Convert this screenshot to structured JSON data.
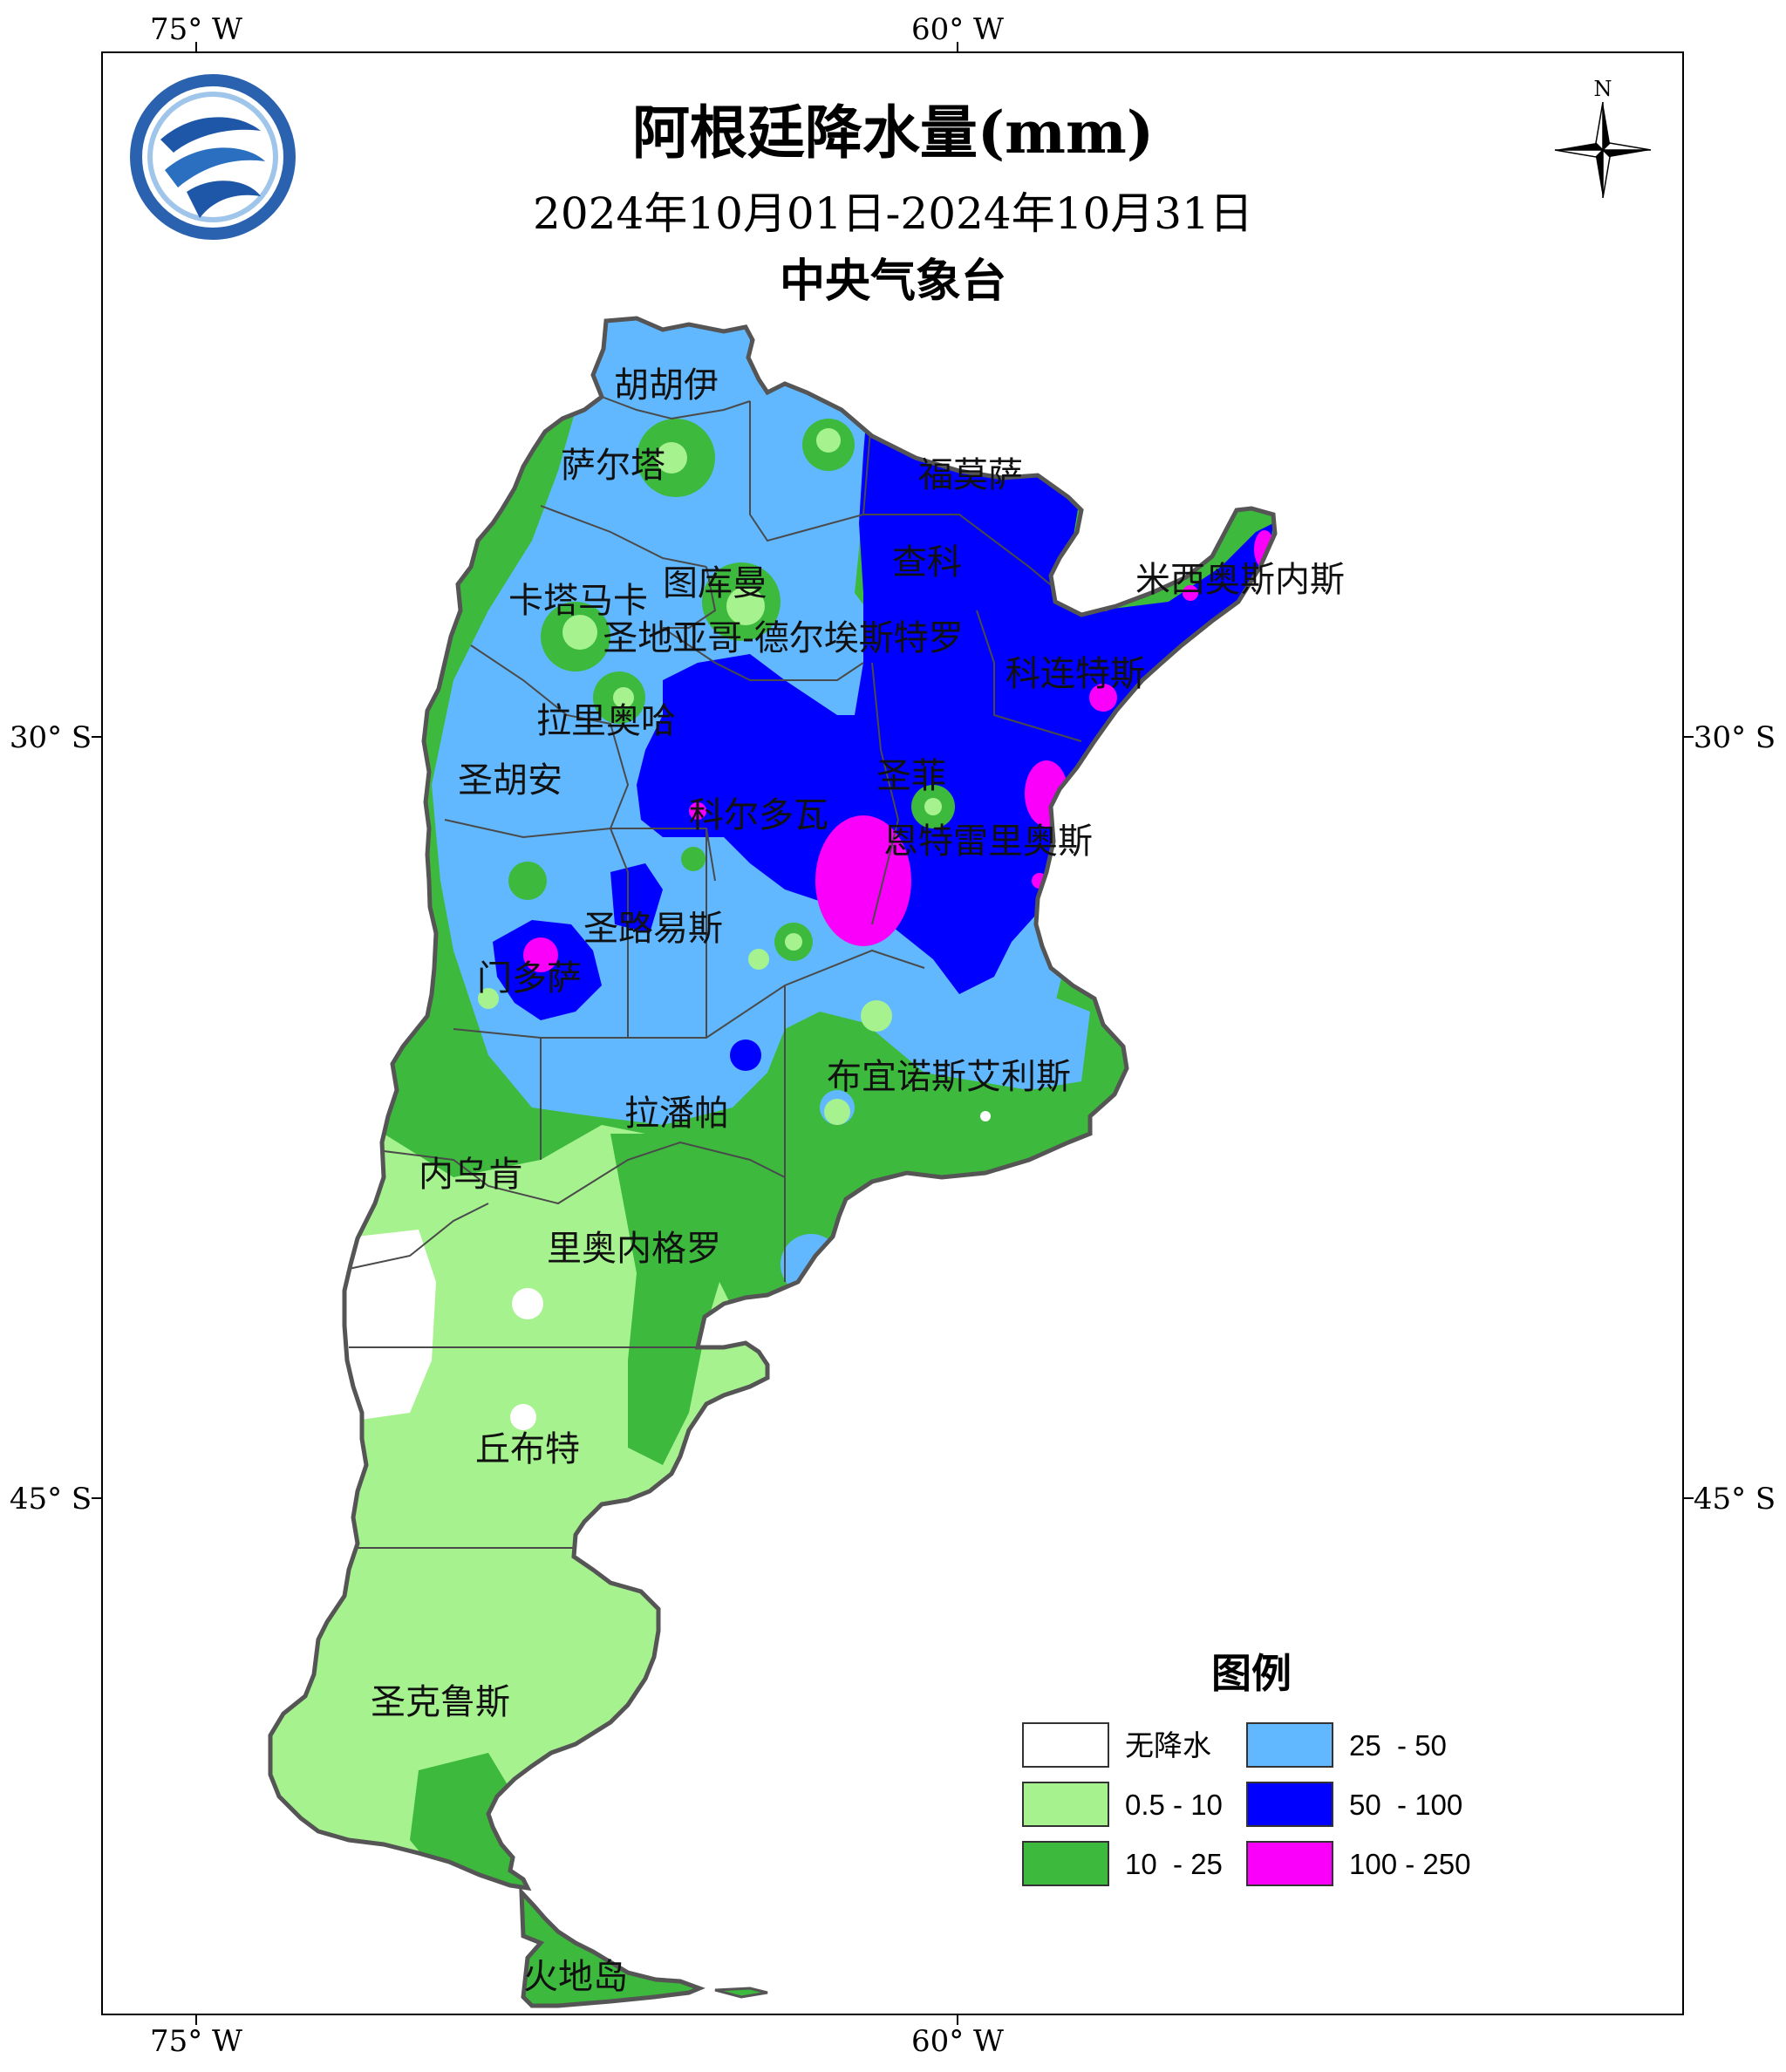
{
  "title": "阿根廷降水量(mm)",
  "date_range": "2024年10月01日-2024年10月31日",
  "agency": "中央气象台",
  "north_label": "N",
  "graticule": {
    "top_lon": [
      "75° W",
      "60° W"
    ],
    "bottom_lon": [
      "75° W",
      "60° W"
    ],
    "left_lat": [
      "30° S",
      "45° S"
    ],
    "right_lat": [
      "30° S",
      "45° S"
    ]
  },
  "provinces": [
    "胡胡伊",
    "萨尔塔",
    "福莫萨",
    "查科",
    "米西奥斯内斯",
    "图库曼",
    "卡塔马卡",
    "圣地亚哥-德尔埃斯特罗",
    "科连特斯",
    "拉里奥哈",
    "圣胡安",
    "圣菲",
    "科尔多瓦",
    "恩特雷里奥斯",
    "圣路易斯",
    "门多萨",
    "布宜诺斯艾利斯",
    "拉潘帕",
    "内乌肯",
    "里奥内格罗",
    "丘布特",
    "圣克鲁斯",
    "火地岛"
  ],
  "legend": {
    "title": "图例",
    "items": [
      {
        "label": "无降水",
        "color": "#ffffff"
      },
      {
        "label": "0.5 - 10",
        "color": "#a6f28f"
      },
      {
        "label": "10  - 25",
        "color": "#3dba3d"
      },
      {
        "label": "25  - 50",
        "color": "#61b8ff"
      },
      {
        "label": "50  - 100",
        "color": "#0000ff"
      },
      {
        "label": "100 - 250",
        "color": "#fa00fa"
      }
    ]
  }
}
